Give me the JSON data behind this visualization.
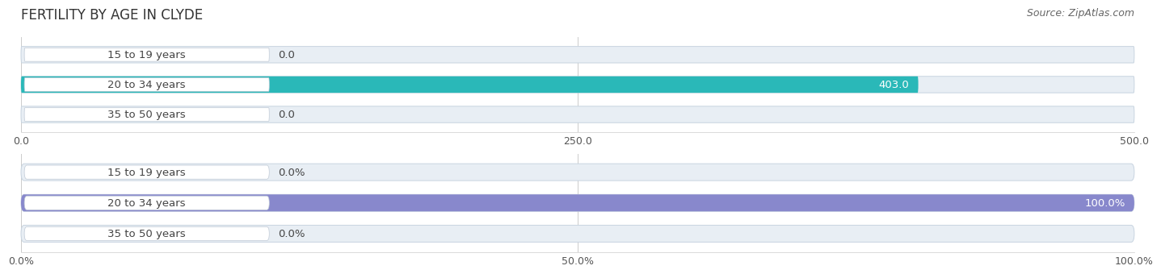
{
  "title": "FERTILITY BY AGE IN CLYDE",
  "source": "Source: ZipAtlas.com",
  "top_chart": {
    "categories": [
      "15 to 19 years",
      "20 to 34 years",
      "35 to 50 years"
    ],
    "values": [
      0.0,
      403.0,
      0.0
    ],
    "xlim": [
      0,
      500
    ],
    "xticks": [
      0.0,
      250.0,
      500.0
    ],
    "xticklabels": [
      "0.0",
      "250.0",
      "500.0"
    ],
    "bar_color": "#2ab8b8",
    "bar_bg_color": "#e8eef4",
    "bar_border_color": "#c8d4e0"
  },
  "bottom_chart": {
    "categories": [
      "15 to 19 years",
      "20 to 34 years",
      "35 to 50 years"
    ],
    "values": [
      0.0,
      100.0,
      0.0
    ],
    "xlim": [
      0,
      100
    ],
    "xticks": [
      0.0,
      50.0,
      100.0
    ],
    "xticklabels": [
      "0.0%",
      "50.0%",
      "100.0%"
    ],
    "bar_color": "#8888cc",
    "bar_bg_color": "#e8eef4",
    "bar_border_color": "#c8d4e0"
  },
  "title_fontsize": 12,
  "label_fontsize": 9.5,
  "tick_fontsize": 9,
  "source_fontsize": 9,
  "figure_bg": "#ffffff",
  "label_box_color": "#ffffff",
  "label_box_border": "#c0cad6",
  "label_text_color": "#444444",
  "value_text_color_inside": "#ffffff",
  "value_text_color_outside": "#444444"
}
